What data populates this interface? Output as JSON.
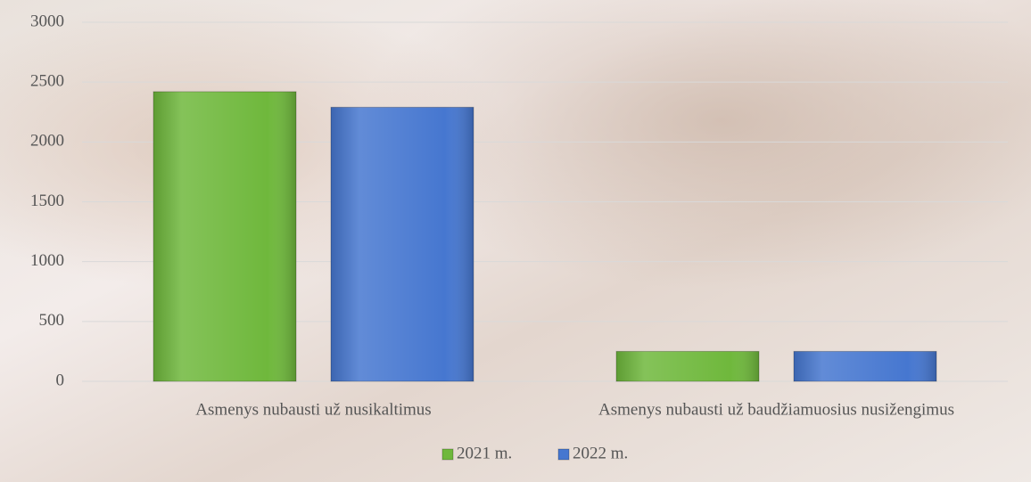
{
  "chart_data": {
    "type": "bar",
    "categories": [
      "Asmenys nubausti už nusikaltimus",
      "Asmenys nubausti už baudžiamuosius nusižengimus"
    ],
    "series": [
      {
        "name": "2021 m.",
        "color": "#6fb83c",
        "values": [
          2420,
          250
        ]
      },
      {
        "name": "2022 m.",
        "color": "#4677d0",
        "values": [
          2290,
          250
        ]
      }
    ],
    "ylim": [
      0,
      3000
    ],
    "yticks": [
      0,
      500,
      1000,
      1500,
      2000,
      2500,
      3000
    ],
    "grid": true,
    "legend": "bottom"
  }
}
